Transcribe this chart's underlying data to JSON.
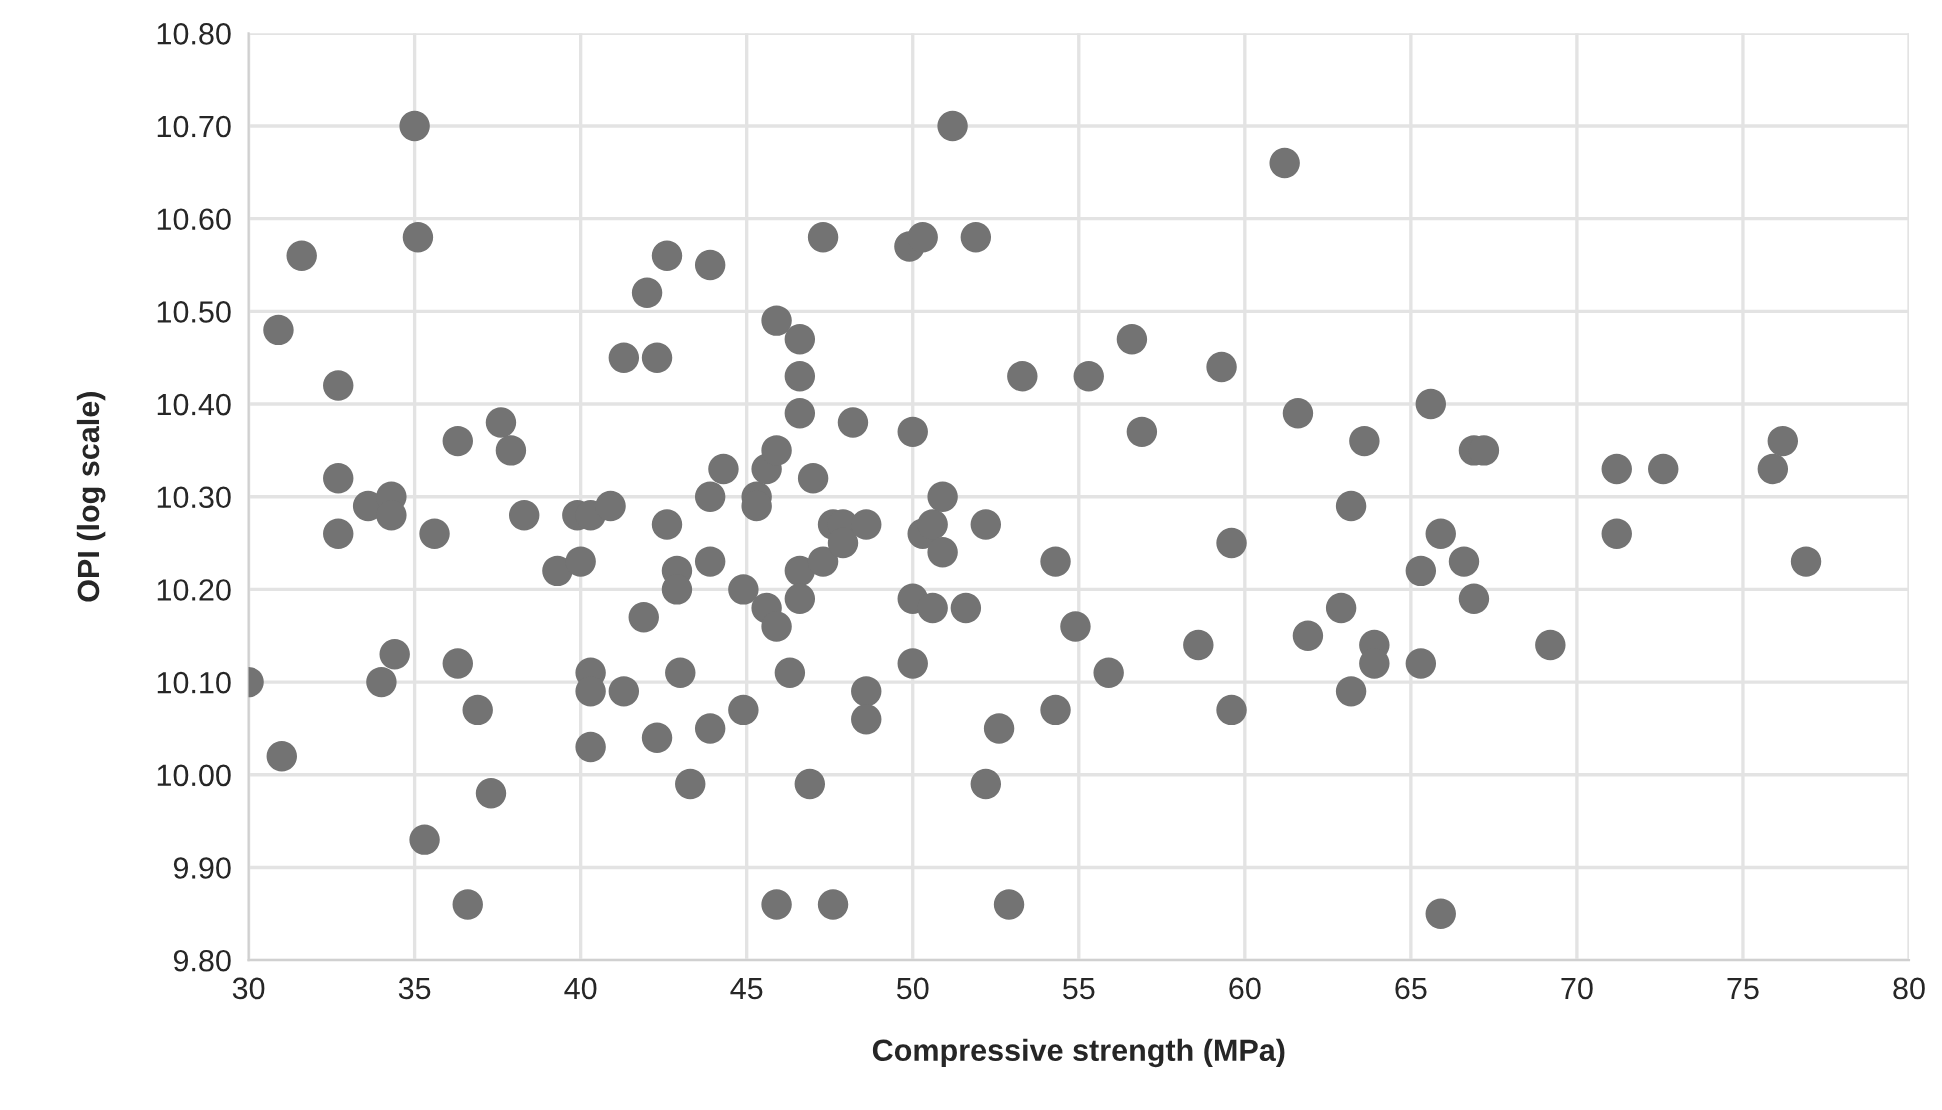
{
  "chart_data": {
    "type": "scatter",
    "xlabel": "Compressive strength (MPa)",
    "ylabel": "OPI (log scale)",
    "xlim": [
      30,
      80
    ],
    "xticks": [
      30,
      35,
      40,
      45,
      50,
      55,
      60,
      65,
      70,
      75,
      80
    ],
    "ylim": [
      9.8,
      10.8
    ],
    "yticks": [
      {
        "value": 9.8,
        "label": "9.80"
      },
      {
        "value": 9.9,
        "label": "9.90"
      },
      {
        "value": 10.0,
        "label": "10.00"
      },
      {
        "value": 10.1,
        "label": "10.10"
      },
      {
        "value": 10.2,
        "label": "10.20"
      },
      {
        "value": 10.3,
        "label": "10.30"
      },
      {
        "value": 10.4,
        "label": "10.40"
      },
      {
        "value": 10.5,
        "label": "10.50"
      },
      {
        "value": 10.6,
        "label": "10.60"
      },
      {
        "value": 10.7,
        "label": "10.70"
      },
      {
        "value": 10.8,
        "label": "10.80"
      }
    ],
    "grid": true,
    "marker": "circle",
    "series": [
      {
        "color": "#737373",
        "x": [
          30.0,
          30.9,
          31.0,
          31.6,
          32.7,
          32.7,
          32.7,
          33.6,
          34.0,
          34.3,
          34.3,
          34.4,
          35.0,
          35.1,
          35.3,
          35.6,
          36.3,
          36.3,
          36.6,
          36.9,
          37.3,
          37.6,
          37.9,
          38.3,
          39.3,
          39.9,
          40.0,
          40.3,
          40.3,
          40.3,
          40.3,
          40.9,
          41.3,
          41.3,
          41.9,
          42.0,
          42.3,
          42.3,
          42.6,
          42.6,
          42.9,
          42.9,
          43.0,
          43.3,
          43.9,
          43.9,
          43.9,
          43.9,
          44.3,
          44.9,
          44.9,
          45.3,
          45.3,
          45.6,
          45.6,
          45.9,
          45.9,
          45.9,
          45.9,
          46.3,
          46.6,
          46.6,
          46.6,
          46.6,
          46.6,
          46.9,
          47.0,
          47.3,
          47.3,
          47.6,
          47.6,
          47.9,
          47.9,
          48.2,
          48.6,
          48.6,
          48.6,
          49.9,
          50.0,
          50.0,
          50.0,
          50.3,
          50.3,
          50.6,
          50.6,
          50.9,
          50.9,
          51.2,
          51.6,
          51.9,
          52.2,
          52.2,
          52.6,
          52.9,
          53.3,
          54.3,
          54.3,
          54.9,
          55.3,
          55.9,
          56.6,
          56.9,
          58.6,
          59.3,
          59.6,
          59.6,
          61.2,
          61.6,
          61.9,
          62.9,
          63.2,
          63.2,
          63.6,
          63.9,
          63.9,
          65.3,
          65.3,
          65.6,
          65.9,
          65.9,
          66.6,
          66.9,
          66.9,
          67.2,
          69.2,
          71.2,
          71.2,
          72.6,
          75.9,
          76.2,
          76.9
        ],
        "values": [
          10.1,
          10.48,
          10.02,
          10.56,
          10.42,
          10.32,
          10.26,
          10.29,
          10.1,
          10.3,
          10.28,
          10.13,
          10.7,
          10.58,
          9.93,
          10.26,
          10.36,
          10.12,
          9.86,
          10.07,
          9.98,
          10.38,
          10.35,
          10.28,
          10.22,
          10.28,
          10.23,
          10.28,
          10.11,
          10.09,
          10.03,
          10.29,
          10.45,
          10.09,
          10.17,
          10.52,
          10.45,
          10.04,
          10.56,
          10.27,
          10.22,
          10.2,
          10.11,
          9.99,
          10.55,
          10.3,
          10.23,
          10.05,
          10.33,
          10.2,
          10.07,
          10.3,
          10.29,
          10.33,
          10.18,
          10.49,
          10.35,
          10.16,
          9.86,
          10.11,
          10.47,
          10.43,
          10.39,
          10.22,
          10.19,
          9.99,
          10.32,
          10.58,
          10.23,
          10.27,
          9.86,
          10.27,
          10.25,
          10.38,
          10.27,
          10.09,
          10.06,
          10.57,
          10.37,
          10.19,
          10.12,
          10.58,
          10.26,
          10.27,
          10.18,
          10.3,
          10.24,
          10.7,
          10.18,
          10.58,
          10.27,
          9.99,
          10.05,
          9.86,
          10.43,
          10.23,
          10.07,
          10.16,
          10.43,
          10.11,
          10.47,
          10.37,
          10.14,
          10.44,
          10.25,
          10.07,
          10.66,
          10.39,
          10.15,
          10.18,
          10.29,
          10.09,
          10.36,
          10.14,
          10.12,
          10.22,
          10.12,
          10.4,
          10.26,
          9.85,
          10.23,
          10.35,
          10.19,
          10.35,
          10.14,
          10.33,
          10.26,
          10.33,
          10.33,
          10.36,
          10.23
        ]
      }
    ]
  }
}
